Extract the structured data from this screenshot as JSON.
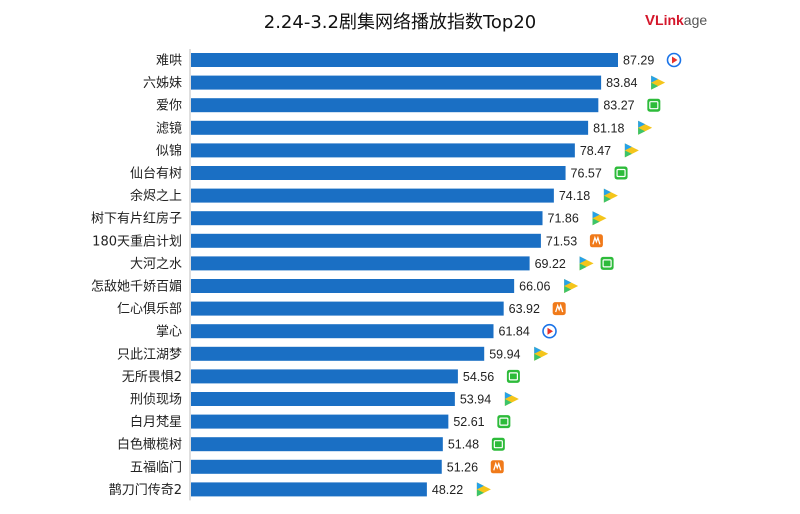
{
  "title": "2.24-3.2剧集网络播放指数Top20",
  "logo": {
    "first": "V",
    "middle": "Link",
    "last": "age"
  },
  "colors": {
    "bar": "#1a6fc4",
    "tencent_blue": "#1a73e8",
    "tencent_red": "#e8312b",
    "iqiyi_green": "#2dbb3a",
    "youku_yellow": "#f4c51b",
    "youku_blue": "#26a2e8",
    "youku_green": "#3cc46a",
    "mango_orange": "#f07a1a"
  },
  "chart_data": {
    "type": "bar",
    "orientation": "horizontal",
    "title": "2.24-3.2剧集网络播放指数Top20",
    "categories": [
      "难哄",
      "六姊妹",
      "爱你",
      "滤镜",
      "似锦",
      "仙台有树",
      "余烬之上",
      "树下有片红房子",
      "180天重启计划",
      "大河之水",
      "怎敌她千娇百媚",
      "仁心俱乐部",
      "掌心",
      "只此江湖梦",
      "无所畏惧2",
      "刑侦现场",
      "白月梵星",
      "白色橄榄树",
      "五福临门",
      "鹊刀门传奇2"
    ],
    "values": [
      87.29,
      83.84,
      83.27,
      81.18,
      78.47,
      76.57,
      74.18,
      71.86,
      71.53,
      69.22,
      66.06,
      63.92,
      61.84,
      59.94,
      54.56,
      53.94,
      52.61,
      51.48,
      51.26,
      48.22
    ],
    "labels": [
      "87.29",
      "83.84",
      "83.27",
      "81.18",
      "78.47",
      "76.57",
      "74.18",
      "71.86",
      "71.53",
      "69.22",
      "66.06",
      "63.92",
      "61.84",
      "59.94",
      "54.56",
      "53.94",
      "52.61",
      "51.48",
      "51.26",
      "48.22"
    ],
    "platforms": [
      [
        "tencent-video"
      ],
      [
        "youku"
      ],
      [
        "iqiyi"
      ],
      [
        "youku"
      ],
      [
        "youku"
      ],
      [
        "iqiyi"
      ],
      [
        "youku"
      ],
      [
        "youku"
      ],
      [
        "mango-tv"
      ],
      [
        "youku",
        "iqiyi"
      ],
      [
        "youku"
      ],
      [
        "mango-tv"
      ],
      [
        "tencent-video"
      ],
      [
        "youku"
      ],
      [
        "iqiyi"
      ],
      [
        "youku"
      ],
      [
        "iqiyi"
      ],
      [
        "iqiyi"
      ],
      [
        "mango-tv"
      ],
      [
        "youku"
      ]
    ],
    "xlim": [
      0,
      87.29
    ],
    "grid": false,
    "legend": false
  }
}
